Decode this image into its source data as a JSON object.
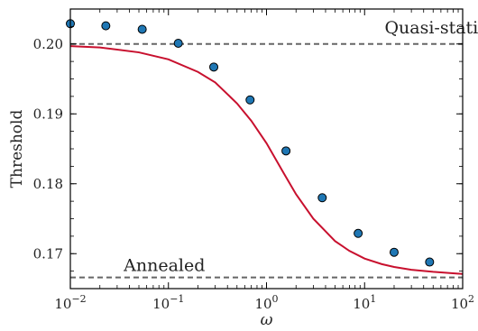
{
  "chart_data": {
    "type": "scatter",
    "xlabel": "ω",
    "ylabel": "Threshold",
    "xscale": "log",
    "xlim": [
      0.01,
      100
    ],
    "ylim": [
      0.165,
      0.205
    ],
    "x_ticks": [
      0.01,
      0.1,
      1,
      10,
      100
    ],
    "x_tick_labels": [
      {
        "base": "10",
        "exp": "−2"
      },
      {
        "base": "10",
        "exp": "−1"
      },
      {
        "base": "10",
        "exp": "0"
      },
      {
        "base": "10",
        "exp": "1"
      },
      {
        "base": "10",
        "exp": "2"
      }
    ],
    "y_ticks": [
      0.17,
      0.18,
      0.19,
      0.2
    ],
    "y_tick_labels": [
      "0.17",
      "0.18",
      "0.19",
      "0.20"
    ],
    "grid": false,
    "annotations": [
      {
        "text": "Quasi-static",
        "x": 16,
        "y": 0.2015
      },
      {
        "text": "Annealed",
        "x": 0.035,
        "y": 0.1675
      }
    ],
    "reference_lines": [
      {
        "label": "Quasi-static",
        "y": 0.2,
        "style": "dashed",
        "color": "#666666"
      },
      {
        "label": "Annealed",
        "y": 0.1666,
        "style": "dashed",
        "color": "#666666"
      }
    ],
    "series": [
      {
        "kind": "points",
        "color": "#1f77b4",
        "x": [
          0.01,
          0.023,
          0.054,
          0.126,
          0.29,
          0.68,
          1.58,
          3.7,
          8.6,
          20,
          46
        ],
        "y": [
          0.2029,
          0.2026,
          0.2021,
          0.2001,
          0.1967,
          0.192,
          0.1847,
          0.178,
          0.1729,
          0.1702,
          0.1688
        ]
      },
      {
        "kind": "curve",
        "color": "#c8102e",
        "x": [
          0.01,
          0.02,
          0.05,
          0.1,
          0.2,
          0.3,
          0.5,
          0.7,
          1,
          1.5,
          2,
          3,
          5,
          7,
          10,
          15,
          20,
          30,
          50,
          100
        ],
        "y": [
          0.1997,
          0.1995,
          0.1988,
          0.1978,
          0.196,
          0.1945,
          0.1915,
          0.189,
          0.1858,
          0.1815,
          0.1785,
          0.175,
          0.1718,
          0.1704,
          0.1693,
          0.1685,
          0.1681,
          0.1677,
          0.1674,
          0.1671
        ]
      }
    ]
  }
}
